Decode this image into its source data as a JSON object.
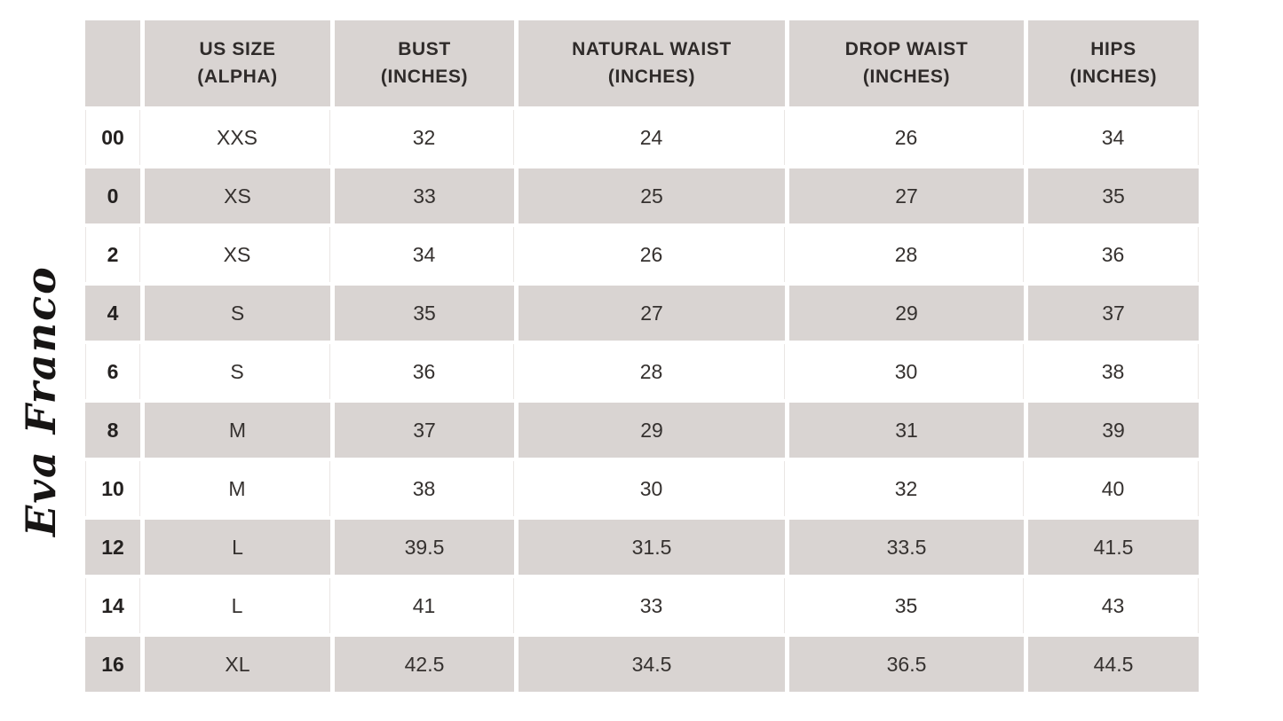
{
  "brand": {
    "logo_text": "Eva Franco"
  },
  "colors": {
    "stripe": "#d9d4d2",
    "background": "#ffffff",
    "text": "#35312f",
    "grid_line": "#eae6e4"
  },
  "table": {
    "headers": [
      {
        "line1": "",
        "line2": ""
      },
      {
        "line1": "US SIZE",
        "line2": "(ALPHA)"
      },
      {
        "line1": "BUST",
        "line2": "(INCHES)"
      },
      {
        "line1": "NATURAL WAIST",
        "line2": "(INCHES)"
      },
      {
        "line1": "DROP WAIST",
        "line2": "(INCHES)"
      },
      {
        "line1": "HIPS",
        "line2": "(INCHES)"
      }
    ],
    "rows": [
      {
        "us_size": "00",
        "alpha": "XXS",
        "bust": "32",
        "natural_waist": "24",
        "drop_waist": "26",
        "hips": "34"
      },
      {
        "us_size": "0",
        "alpha": "XS",
        "bust": "33",
        "natural_waist": "25",
        "drop_waist": "27",
        "hips": "35"
      },
      {
        "us_size": "2",
        "alpha": "XS",
        "bust": "34",
        "natural_waist": "26",
        "drop_waist": "28",
        "hips": "36"
      },
      {
        "us_size": "4",
        "alpha": "S",
        "bust": "35",
        "natural_waist": "27",
        "drop_waist": "29",
        "hips": "37"
      },
      {
        "us_size": "6",
        "alpha": "S",
        "bust": "36",
        "natural_waist": "28",
        "drop_waist": "30",
        "hips": "38"
      },
      {
        "us_size": "8",
        "alpha": "M",
        "bust": "37",
        "natural_waist": "29",
        "drop_waist": "31",
        "hips": "39"
      },
      {
        "us_size": "10",
        "alpha": "M",
        "bust": "38",
        "natural_waist": "30",
        "drop_waist": "32",
        "hips": "40"
      },
      {
        "us_size": "12",
        "alpha": "L",
        "bust": "39.5",
        "natural_waist": "31.5",
        "drop_waist": "33.5",
        "hips": "41.5"
      },
      {
        "us_size": "14",
        "alpha": "L",
        "bust": "41",
        "natural_waist": "33",
        "drop_waist": "35",
        "hips": "43"
      },
      {
        "us_size": "16",
        "alpha": "XL",
        "bust": "42.5",
        "natural_waist": "34.5",
        "drop_waist": "36.5",
        "hips": "44.5"
      }
    ]
  },
  "chart_data": {
    "type": "table",
    "title": "Eva Franco size chart",
    "columns": [
      "",
      "US SIZE (ALPHA)",
      "BUST (INCHES)",
      "NATURAL WAIST (INCHES)",
      "DROP WAIST (INCHES)",
      "HIPS (INCHES)"
    ],
    "rows": [
      [
        "00",
        "XXS",
        32,
        24,
        26,
        34
      ],
      [
        "0",
        "XS",
        33,
        25,
        27,
        35
      ],
      [
        "2",
        "XS",
        34,
        26,
        28,
        36
      ],
      [
        "4",
        "S",
        35,
        27,
        29,
        37
      ],
      [
        "6",
        "S",
        36,
        28,
        30,
        38
      ],
      [
        "8",
        "M",
        37,
        29,
        31,
        39
      ],
      [
        "10",
        "M",
        38,
        30,
        32,
        40
      ],
      [
        "12",
        "L",
        39.5,
        31.5,
        33.5,
        41.5
      ],
      [
        "14",
        "L",
        41,
        33,
        35,
        43
      ],
      [
        "16",
        "XL",
        42.5,
        34.5,
        36.5,
        44.5
      ]
    ],
    "layout_hints": {
      "striping": "alternating white and warm-gray rows, starting white",
      "header_background": "#d9d4d2",
      "cell_gutters": "white, ~5px horizontal / ~4px vertical"
    }
  }
}
